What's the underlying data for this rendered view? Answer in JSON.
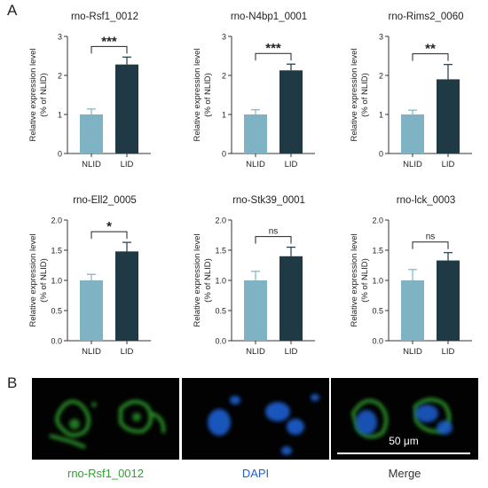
{
  "panel_a_label": "A",
  "panel_b_label": "B",
  "style": {
    "nlid_color": "#7fb3c4",
    "lid_color": "#1f3a44",
    "green": "#2ea12e",
    "blue": "#1f5fd0"
  },
  "chart_data": [
    {
      "type": "bar",
      "title": "rno-Rsf1_0012",
      "categories": [
        "NLID",
        "LID"
      ],
      "values": [
        1.0,
        2.28
      ],
      "errors": [
        0.14,
        0.19
      ],
      "ylabel": [
        "Relative expression level",
        "(% of NLID)"
      ],
      "ylim": [
        0,
        3
      ],
      "yticks": [
        "0",
        "1",
        "2",
        "3"
      ],
      "significance": "***"
    },
    {
      "type": "bar",
      "title": "rno-N4bp1_0001",
      "categories": [
        "NLID",
        "LID"
      ],
      "values": [
        1.0,
        2.13
      ],
      "errors": [
        0.12,
        0.16
      ],
      "ylabel": [
        "Relative expression level",
        "(% of NLID)"
      ],
      "ylim": [
        0,
        3
      ],
      "yticks": [
        "0",
        "1",
        "2",
        "3"
      ],
      "significance": "***"
    },
    {
      "type": "bar",
      "title": "rno-Rims2_0060",
      "categories": [
        "NLID",
        "LID"
      ],
      "values": [
        1.0,
        1.9
      ],
      "errors": [
        0.11,
        0.38
      ],
      "ylabel": [
        "Relative expression level",
        "(% of NLID)"
      ],
      "ylim": [
        0,
        3
      ],
      "yticks": [
        "0",
        "1",
        "2",
        "3"
      ],
      "significance": "**"
    },
    {
      "type": "bar",
      "title": "rno-Ell2_0005",
      "categories": [
        "NLID",
        "LID"
      ],
      "values": [
        1.0,
        1.48
      ],
      "errors": [
        0.1,
        0.15
      ],
      "ylabel": [
        "Relative expression level",
        "(% of NLID)"
      ],
      "ylim": [
        0,
        2.0
      ],
      "yticks": [
        "0.0",
        "0.5",
        "1.0",
        "1.5",
        "2.0"
      ],
      "significance": "*"
    },
    {
      "type": "bar",
      "title": "rno-Stk39_0001",
      "categories": [
        "NLID",
        "LID"
      ],
      "values": [
        1.0,
        1.4
      ],
      "errors": [
        0.15,
        0.15
      ],
      "ylabel": [
        "Relative expression level",
        "(% of NLID)"
      ],
      "ylim": [
        0,
        2.0
      ],
      "yticks": [
        "0.0",
        "0.5",
        "1.0",
        "1.5",
        "2.0"
      ],
      "significance": "ns"
    },
    {
      "type": "bar",
      "title": "rno-lck_0003",
      "categories": [
        "NLID",
        "LID"
      ],
      "values": [
        1.0,
        1.33
      ],
      "errors": [
        0.18,
        0.13
      ],
      "ylabel": [
        "Relative expression level",
        "(% of NLID)"
      ],
      "ylim": [
        0,
        2.0
      ],
      "yticks": [
        "0.0",
        "0.5",
        "1.0",
        "1.5",
        "2.0"
      ],
      "significance": "ns"
    }
  ],
  "micrographs": {
    "labels": [
      "rno-Rsf1_0012",
      "DAPI",
      "Merge"
    ],
    "scale_bar": "50 μm"
  }
}
